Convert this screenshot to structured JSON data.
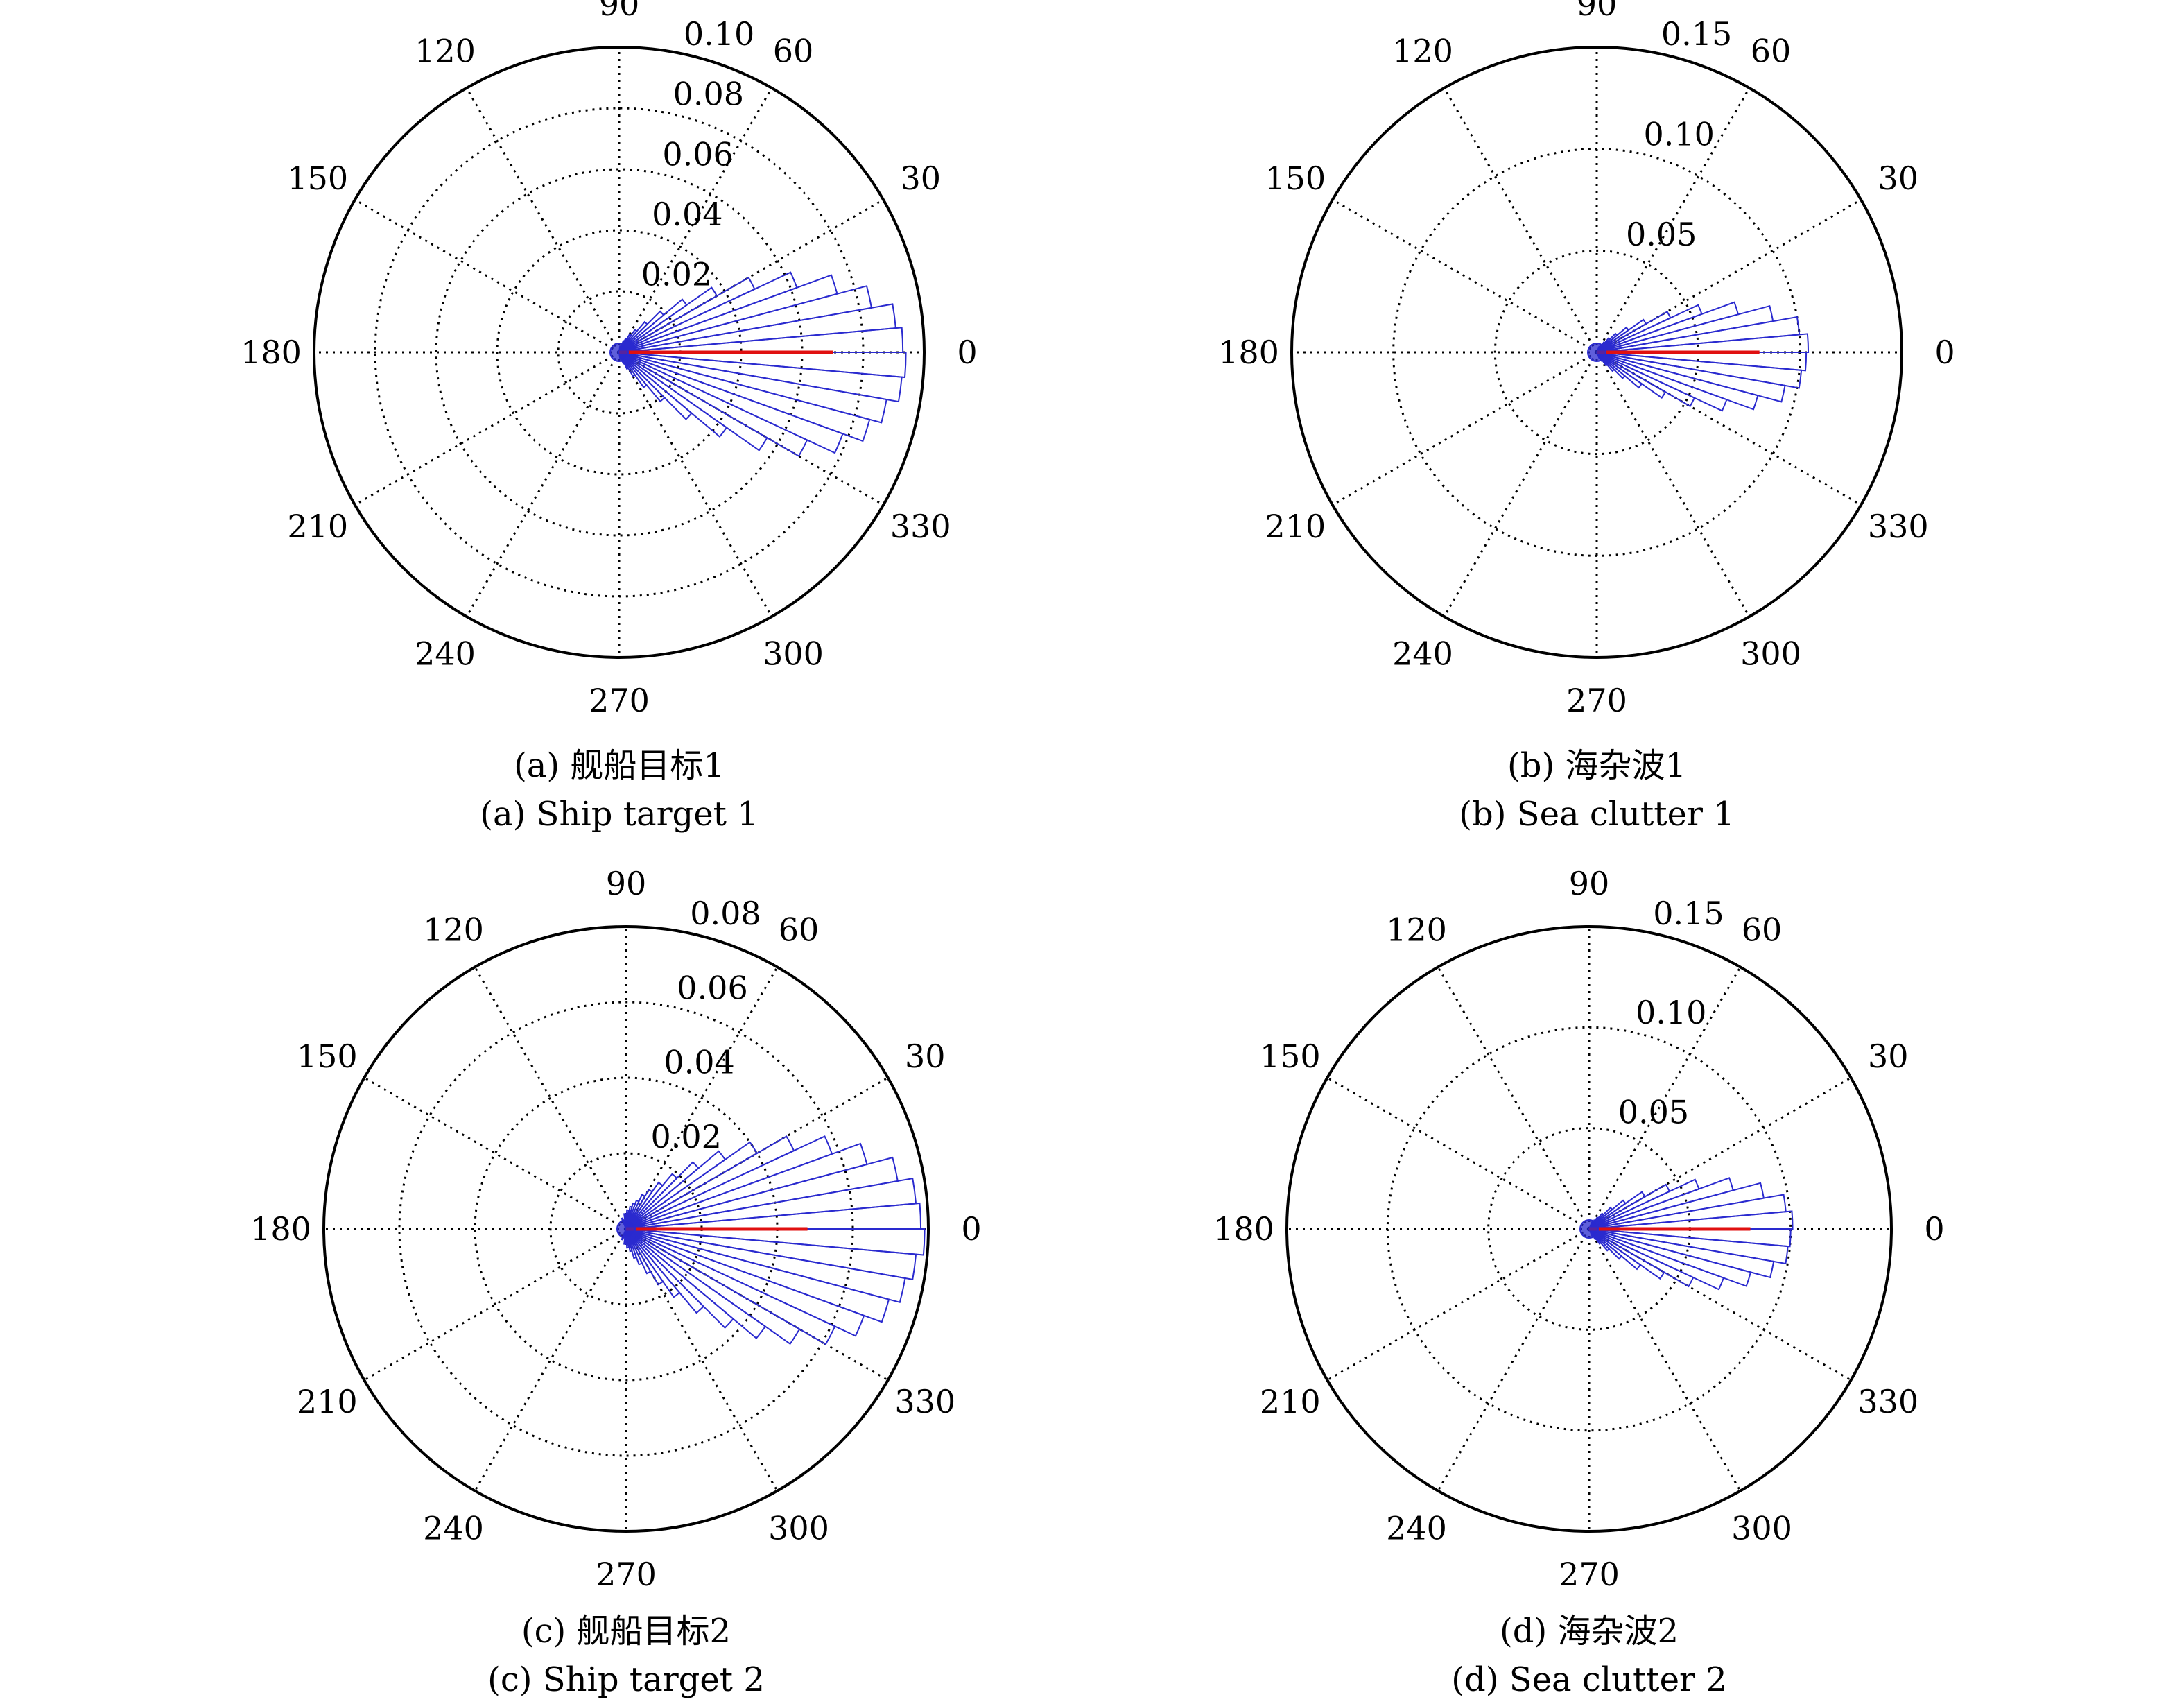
{
  "colors": {
    "bars": "#2a2acf",
    "mean_direction": "#e01010",
    "grid": "#000000"
  },
  "chart_data": [
    {
      "type": "polar-histogram",
      "angle_ticks": [
        "0",
        "30",
        "60",
        "90",
        "120",
        "150",
        "180",
        "210",
        "240",
        "270",
        "300",
        "330"
      ],
      "radial_ticks": [
        0.02,
        0.04,
        0.06,
        0.08,
        0.1
      ],
      "radial_tick_labels": [
        "0.02",
        "0.04",
        "0.06",
        "0.08",
        "0.10"
      ],
      "rmax": 0.1,
      "grid": true,
      "bin_width_deg": 5,
      "bins": [
        {
          "angle": 2.5,
          "value": 0.093
        },
        {
          "angle": 7.5,
          "value": 0.091
        },
        {
          "angle": 12.5,
          "value": 0.084
        },
        {
          "angle": 17.5,
          "value": 0.074
        },
        {
          "angle": 22.5,
          "value": 0.062
        },
        {
          "angle": 27.5,
          "value": 0.049
        },
        {
          "angle": 32.5,
          "value": 0.037
        },
        {
          "angle": 37.5,
          "value": 0.027
        },
        {
          "angle": 42.5,
          "value": 0.019
        },
        {
          "angle": 47.5,
          "value": 0.013
        },
        {
          "angle": 52.5,
          "value": 0.009
        },
        {
          "angle": 57.5,
          "value": 0.007
        },
        {
          "angle": 62.5,
          "value": 0.005
        },
        {
          "angle": 67.5,
          "value": 0.004
        },
        {
          "angle": 72.5,
          "value": 0.003
        },
        {
          "angle": 80.0,
          "value": 0.002
        },
        {
          "angle": 280.0,
          "value": 0.002
        },
        {
          "angle": 287.5,
          "value": 0.003
        },
        {
          "angle": 292.5,
          "value": 0.004
        },
        {
          "angle": 297.5,
          "value": 0.006
        },
        {
          "angle": 302.5,
          "value": 0.009
        },
        {
          "angle": 307.5,
          "value": 0.014
        },
        {
          "angle": 312.5,
          "value": 0.021
        },
        {
          "angle": 317.5,
          "value": 0.031
        },
        {
          "angle": 322.5,
          "value": 0.043
        },
        {
          "angle": 327.5,
          "value": 0.056
        },
        {
          "angle": 332.5,
          "value": 0.068
        },
        {
          "angle": 337.5,
          "value": 0.078
        },
        {
          "angle": 342.5,
          "value": 0.085
        },
        {
          "angle": 347.5,
          "value": 0.089
        },
        {
          "angle": 352.5,
          "value": 0.093
        },
        {
          "angle": 357.5,
          "value": 0.094
        }
      ],
      "mean_direction_deg": 0,
      "mean_length": 0.07,
      "caption_cn": "(a) 舰船目标1",
      "caption_en": "(a) Ship target 1"
    },
    {
      "type": "polar-histogram",
      "angle_ticks": [
        "0",
        "30",
        "60",
        "90",
        "120",
        "150",
        "180",
        "210",
        "240",
        "270",
        "300",
        "330"
      ],
      "radial_ticks": [
        0.05,
        0.1,
        0.15
      ],
      "radial_tick_labels": [
        "0.05",
        "0.10",
        "0.15"
      ],
      "rmax": 0.15,
      "grid": true,
      "bin_width_deg": 5,
      "bins": [
        {
          "angle": 2.5,
          "value": 0.104
        },
        {
          "angle": 7.5,
          "value": 0.1
        },
        {
          "angle": 12.5,
          "value": 0.088
        },
        {
          "angle": 17.5,
          "value": 0.072
        },
        {
          "angle": 22.5,
          "value": 0.055
        },
        {
          "angle": 27.5,
          "value": 0.04
        },
        {
          "angle": 32.5,
          "value": 0.028
        },
        {
          "angle": 37.5,
          "value": 0.019
        },
        {
          "angle": 42.5,
          "value": 0.013
        },
        {
          "angle": 47.5,
          "value": 0.009
        },
        {
          "angle": 52.5,
          "value": 0.006
        },
        {
          "angle": 57.5,
          "value": 0.004
        },
        {
          "angle": 65.0,
          "value": 0.003
        },
        {
          "angle": 295.0,
          "value": 0.003
        },
        {
          "angle": 302.5,
          "value": 0.005
        },
        {
          "angle": 307.5,
          "value": 0.008
        },
        {
          "angle": 312.5,
          "value": 0.012
        },
        {
          "angle": 317.5,
          "value": 0.018
        },
        {
          "angle": 322.5,
          "value": 0.027
        },
        {
          "angle": 327.5,
          "value": 0.039
        },
        {
          "angle": 332.5,
          "value": 0.053
        },
        {
          "angle": 337.5,
          "value": 0.068
        },
        {
          "angle": 342.5,
          "value": 0.082
        },
        {
          "angle": 347.5,
          "value": 0.094
        },
        {
          "angle": 352.5,
          "value": 0.101
        },
        {
          "angle": 357.5,
          "value": 0.103
        }
      ],
      "mean_direction_deg": 0,
      "mean_length": 0.08,
      "caption_cn": "(b) 海杂波1",
      "caption_en": "(b) Sea clutter 1"
    },
    {
      "type": "polar-histogram",
      "angle_ticks": [
        "0",
        "30",
        "60",
        "90",
        "120",
        "150",
        "180",
        "210",
        "240",
        "270",
        "300",
        "330"
      ],
      "radial_ticks": [
        0.02,
        0.04,
        0.06,
        0.08
      ],
      "radial_tick_labels": [
        "0.02",
        "0.04",
        "0.06",
        "0.08"
      ],
      "rmax": 0.08,
      "grid": true,
      "bin_width_deg": 5,
      "bins": [
        {
          "angle": 2.5,
          "value": 0.078
        },
        {
          "angle": 7.5,
          "value": 0.077
        },
        {
          "angle": 12.5,
          "value": 0.073
        },
        {
          "angle": 17.5,
          "value": 0.066
        },
        {
          "angle": 22.5,
          "value": 0.058
        },
        {
          "angle": 27.5,
          "value": 0.049
        },
        {
          "angle": 32.5,
          "value": 0.04
        },
        {
          "angle": 37.5,
          "value": 0.032
        },
        {
          "angle": 42.5,
          "value": 0.025
        },
        {
          "angle": 47.5,
          "value": 0.019
        },
        {
          "angle": 52.5,
          "value": 0.015
        },
        {
          "angle": 57.5,
          "value": 0.012
        },
        {
          "angle": 62.5,
          "value": 0.01
        },
        {
          "angle": 67.5,
          "value": 0.008
        },
        {
          "angle": 72.5,
          "value": 0.007
        },
        {
          "angle": 77.5,
          "value": 0.006
        },
        {
          "angle": 85.0,
          "value": 0.005
        },
        {
          "angle": 95.0,
          "value": 0.004
        },
        {
          "angle": 110.0,
          "value": 0.003
        },
        {
          "angle": 250.0,
          "value": 0.003
        },
        {
          "angle": 265.0,
          "value": 0.004
        },
        {
          "angle": 275.0,
          "value": 0.005
        },
        {
          "angle": 282.5,
          "value": 0.006
        },
        {
          "angle": 287.5,
          "value": 0.008
        },
        {
          "angle": 292.5,
          "value": 0.01
        },
        {
          "angle": 297.5,
          "value": 0.013
        },
        {
          "angle": 302.5,
          "value": 0.017
        },
        {
          "angle": 307.5,
          "value": 0.022
        },
        {
          "angle": 312.5,
          "value": 0.029
        },
        {
          "angle": 317.5,
          "value": 0.037
        },
        {
          "angle": 322.5,
          "value": 0.045
        },
        {
          "angle": 327.5,
          "value": 0.053
        },
        {
          "angle": 332.5,
          "value": 0.061
        },
        {
          "angle": 337.5,
          "value": 0.067
        },
        {
          "angle": 342.5,
          "value": 0.072
        },
        {
          "angle": 347.5,
          "value": 0.075
        },
        {
          "angle": 352.5,
          "value": 0.077
        },
        {
          "angle": 357.5,
          "value": 0.079
        }
      ],
      "mean_direction_deg": 0,
      "mean_length": 0.048,
      "caption_cn": "(c) 舰船目标2",
      "caption_en": "(c) Ship target 2"
    },
    {
      "type": "polar-histogram",
      "angle_ticks": [
        "0",
        "30",
        "60",
        "90",
        "120",
        "150",
        "180",
        "210",
        "240",
        "270",
        "300",
        "330"
      ],
      "radial_ticks": [
        0.05,
        0.1,
        0.15
      ],
      "radial_tick_labels": [
        "0.05",
        "0.10",
        "0.15"
      ],
      "rmax": 0.15,
      "grid": true,
      "bin_width_deg": 5,
      "bins": [
        {
          "angle": 2.5,
          "value": 0.101
        },
        {
          "angle": 7.5,
          "value": 0.098
        },
        {
          "angle": 12.5,
          "value": 0.088
        },
        {
          "angle": 17.5,
          "value": 0.074
        },
        {
          "angle": 22.5,
          "value": 0.058
        },
        {
          "angle": 27.5,
          "value": 0.044
        },
        {
          "angle": 32.5,
          "value": 0.032
        },
        {
          "angle": 37.5,
          "value": 0.022
        },
        {
          "angle": 42.5,
          "value": 0.015
        },
        {
          "angle": 47.5,
          "value": 0.01
        },
        {
          "angle": 52.5,
          "value": 0.007
        },
        {
          "angle": 57.5,
          "value": 0.005
        },
        {
          "angle": 65.0,
          "value": 0.004
        },
        {
          "angle": 295.0,
          "value": 0.004
        },
        {
          "angle": 302.5,
          "value": 0.006
        },
        {
          "angle": 307.5,
          "value": 0.009
        },
        {
          "angle": 312.5,
          "value": 0.014
        },
        {
          "angle": 317.5,
          "value": 0.021
        },
        {
          "angle": 322.5,
          "value": 0.031
        },
        {
          "angle": 327.5,
          "value": 0.043
        },
        {
          "angle": 332.5,
          "value": 0.057
        },
        {
          "angle": 337.5,
          "value": 0.071
        },
        {
          "angle": 342.5,
          "value": 0.083
        },
        {
          "angle": 347.5,
          "value": 0.093
        },
        {
          "angle": 352.5,
          "value": 0.099
        },
        {
          "angle": 357.5,
          "value": 0.1
        }
      ],
      "mean_direction_deg": 0,
      "mean_length": 0.08,
      "caption_cn": "(d) 海杂波2",
      "caption_en": "(d) Sea clutter 2"
    }
  ]
}
